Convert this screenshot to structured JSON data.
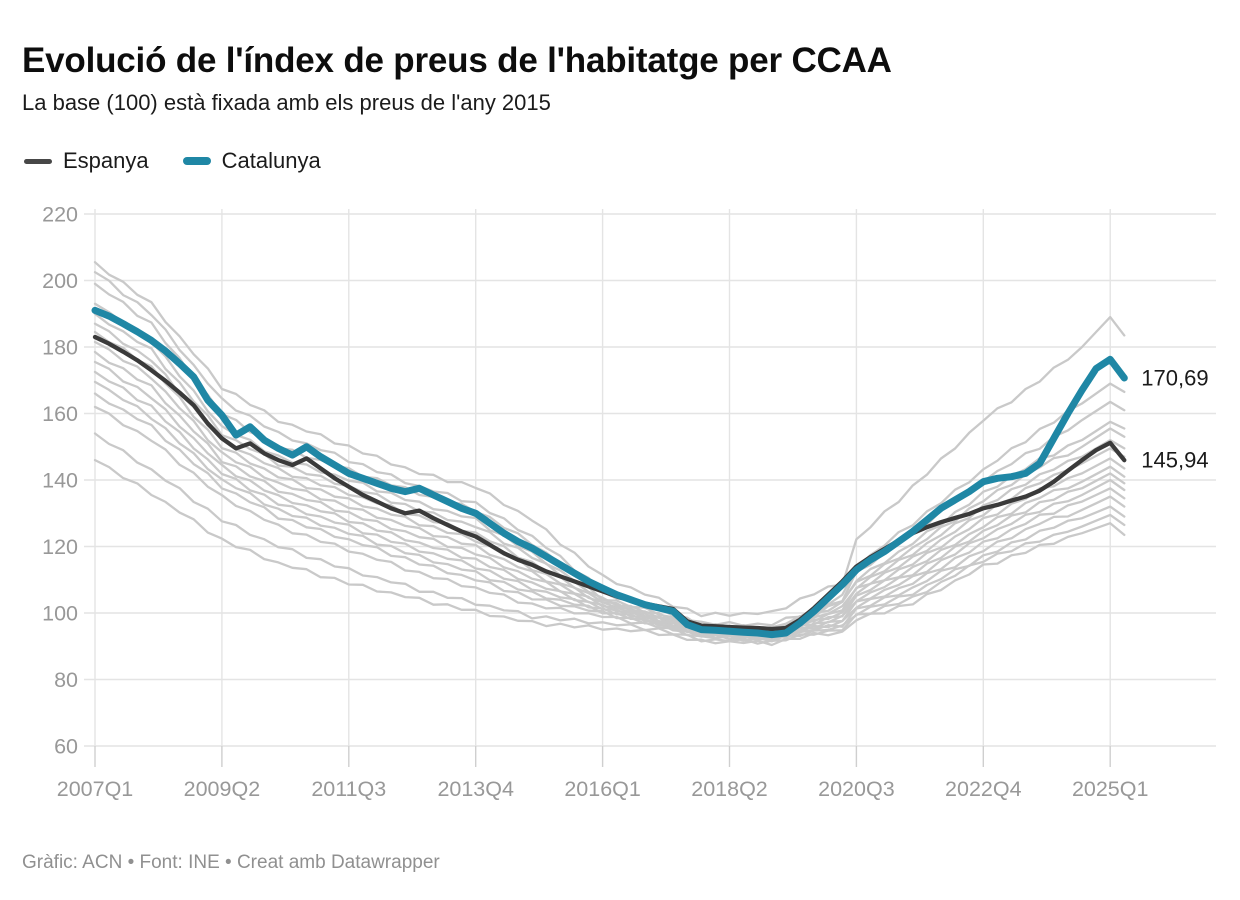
{
  "header": {
    "title": "Evolució de l'índex de preus de l'habitatge per CCAA",
    "subtitle": "La base (100) està fixada amb els preus de l'any 2015"
  },
  "legend": {
    "items": [
      {
        "label": "Espanya",
        "color": "#474747"
      },
      {
        "label": "Catalunya",
        "color": "#1f87a5"
      }
    ]
  },
  "footer": {
    "prefix": "Gràfic: ACN • Font: INE • Creat amb ",
    "link": "Datawrapper"
  },
  "chart_data": {
    "type": "line",
    "title": "Evolució de l'índex de preus de l'habitatge per CCAA",
    "x_start": "2007Q1",
    "x_end": "2025Q2",
    "x_step": "quarter",
    "quarters_total": 74,
    "ylim": [
      60,
      220
    ],
    "grid": "on",
    "legend_position": "top-left",
    "y_ticks": [
      220,
      200,
      180,
      160,
      140,
      120,
      100,
      80,
      60
    ],
    "x_ticks": [
      {
        "label": "2007Q1",
        "q": 0
      },
      {
        "label": "2009Q2",
        "q": 9
      },
      {
        "label": "2011Q3",
        "q": 18
      },
      {
        "label": "2013Q4",
        "q": 27
      },
      {
        "label": "2016Q1",
        "q": 36
      },
      {
        "label": "2018Q2",
        "q": 45
      },
      {
        "label": "2020Q3",
        "q": 54
      },
      {
        "label": "2022Q4",
        "q": 63
      },
      {
        "label": "2025Q1",
        "q": 72
      }
    ],
    "style": {
      "grid_color": "#e4e4e4",
      "tick_color": "#cfcfcf",
      "axis_label_color": "#989898",
      "end_label_color": "#1a1a1a",
      "background_color": "#c9c9c9"
    },
    "series": [
      {
        "id": "espanya",
        "label": "Espanya",
        "color": "#3a3a3a",
        "stroke_width": 4.3,
        "values": [
          183,
          181,
          178.6,
          176,
          173,
          169.8,
          166.3,
          162.5,
          157,
          152.5,
          149.5,
          151,
          148,
          146,
          144.5,
          146.5,
          143.5,
          140.5,
          138,
          135.5,
          133.5,
          131.5,
          130,
          130.8,
          128.5,
          126.5,
          124.5,
          123,
          120.5,
          118,
          116,
          114.5,
          112.5,
          111,
          109.5,
          108,
          106.5,
          105,
          103.8,
          102.8,
          102,
          101.2,
          97.5,
          96.2,
          96,
          95.8,
          95.6,
          95.5,
          95.2,
          95.5,
          98,
          101.5,
          105.5,
          109.5,
          114,
          116.8,
          119.3,
          121.8,
          124,
          125.8,
          127.3,
          128.6,
          129.8,
          131.5,
          132.5,
          133.8,
          135,
          136.8,
          139.5,
          142.8,
          146,
          149,
          151.2,
          145.94
        ]
      },
      {
        "id": "catalunya",
        "label": "Catalunya",
        "color": "#1f87a5",
        "stroke_width": 7,
        "values": [
          191,
          189.3,
          187,
          184.6,
          182,
          178.8,
          175,
          171,
          164,
          159.5,
          153.5,
          156,
          152,
          149.5,
          147.5,
          150,
          147,
          144.5,
          142,
          140.5,
          139,
          137.5,
          136.5,
          137.5,
          135.5,
          133.5,
          131.5,
          130,
          127,
          124,
          121.5,
          119.5,
          117,
          114.5,
          112,
          109.5,
          107.5,
          105.5,
          104,
          102.5,
          101.5,
          100.5,
          96.5,
          95,
          94.8,
          94.5,
          94.2,
          94,
          93.5,
          94,
          97,
          100.5,
          104.5,
          108.5,
          113,
          116,
          118.5,
          121.5,
          124.5,
          128,
          131.5,
          134,
          136.5,
          139.5,
          140.5,
          141,
          142,
          145,
          152.5,
          160,
          167,
          173.5,
          176.3,
          170.69
        ]
      }
    ],
    "end_labels": [
      {
        "series": "catalunya",
        "text": "170,69",
        "value": 170.69
      },
      {
        "series": "espanya",
        "text": "145,94",
        "value": 145.94
      }
    ],
    "bg_waypoint_q": [
      0,
      4,
      9,
      13,
      18,
      23,
      27,
      31,
      36,
      40,
      43,
      48,
      51,
      53,
      54,
      58,
      63,
      67,
      70,
      72,
      73
    ],
    "background_series": [
      [
        205.5,
        193,
        168,
        158,
        150,
        142,
        138,
        128,
        111,
        104,
        99.5,
        100,
        106,
        109,
        122,
        138,
        158,
        170,
        180,
        189,
        183.5
      ],
      [
        202.5,
        190,
        164,
        154,
        146,
        138,
        133,
        123,
        107,
        101.5,
        97,
        96.5,
        101,
        105,
        114,
        127,
        143,
        155,
        163,
        169,
        166.5
      ],
      [
        199,
        187,
        160,
        150,
        143,
        136,
        131,
        121,
        106,
        101,
        96.5,
        95.5,
        100,
        104,
        112,
        124,
        140,
        150,
        158,
        163.5,
        161
      ],
      [
        193,
        182,
        156,
        147,
        140,
        133,
        128,
        118,
        104.5,
        100,
        95.5,
        95,
        99.5,
        103,
        110,
        121,
        136,
        146,
        152,
        157.5,
        155.5
      ],
      [
        190,
        179,
        154,
        145,
        138,
        131,
        126,
        117,
        104,
        99.5,
        95.2,
        94.6,
        99,
        104,
        109,
        119.5,
        134,
        144,
        150,
        155.5,
        153
      ],
      [
        187,
        176,
        152,
        143,
        136,
        129,
        124,
        115,
        103.5,
        99,
        95,
        94.2,
        98.5,
        101.5,
        108,
        118,
        132,
        141.5,
        147,
        152,
        149.5
      ],
      [
        184.5,
        174,
        150,
        141,
        134,
        127,
        122,
        113.5,
        103,
        98.6,
        94.8,
        94,
        98,
        101,
        107,
        116.5,
        130,
        139.5,
        145,
        149.5,
        147
      ],
      [
        181.5,
        171,
        148,
        139,
        132,
        125,
        120,
        112,
        102.5,
        98.2,
        94.5,
        93.7,
        97.5,
        100,
        106,
        115,
        128,
        137,
        142,
        146.5,
        143.5
      ],
      [
        178.5,
        168,
        146,
        137,
        130,
        123,
        118,
        110.5,
        102,
        98,
        94.2,
        93.4,
        97,
        99.5,
        105,
        113.5,
        126,
        135,
        139.5,
        144,
        141
      ],
      [
        175.5,
        165,
        144,
        135,
        128,
        121,
        116,
        109,
        101.5,
        97.6,
        94,
        93.1,
        96.5,
        98.7,
        104,
        112,
        124.5,
        133,
        137.5,
        142,
        139
      ],
      [
        172.5,
        162,
        142,
        133,
        126,
        119,
        114,
        107.5,
        101,
        97.2,
        93.7,
        92.8,
        96,
        98,
        103,
        110.5,
        123,
        131,
        135.5,
        140,
        137
      ],
      [
        169.5,
        159,
        140,
        131,
        124,
        117,
        112,
        106,
        100.5,
        96.8,
        93.4,
        92.5,
        95.5,
        97.2,
        102,
        109,
        121,
        129,
        133.5,
        137.5,
        134.5
      ],
      [
        166,
        156,
        138,
        129,
        122,
        115,
        110,
        104.5,
        100,
        96.4,
        93.1,
        92.2,
        95,
        96.5,
        101,
        107.5,
        119,
        127,
        131,
        135,
        132
      ],
      [
        162,
        152,
        135,
        126,
        119,
        112,
        107.5,
        102.5,
        99,
        96,
        92.8,
        91.9,
        94.5,
        95.7,
        100,
        106,
        117,
        124.5,
        128.5,
        132,
        129
      ],
      [
        154,
        143,
        128,
        120,
        113,
        107,
        103,
        99,
        97,
        95,
        92,
        91.3,
        94,
        95,
        99,
        104.5,
        116,
        122,
        126,
        129.5,
        126.5
      ],
      [
        146,
        136,
        122,
        115,
        109,
        104,
        100.5,
        97,
        95.5,
        94,
        91.5,
        91,
        93.5,
        94.2,
        98,
        103,
        114,
        120,
        124,
        127,
        123.5
      ]
    ]
  }
}
